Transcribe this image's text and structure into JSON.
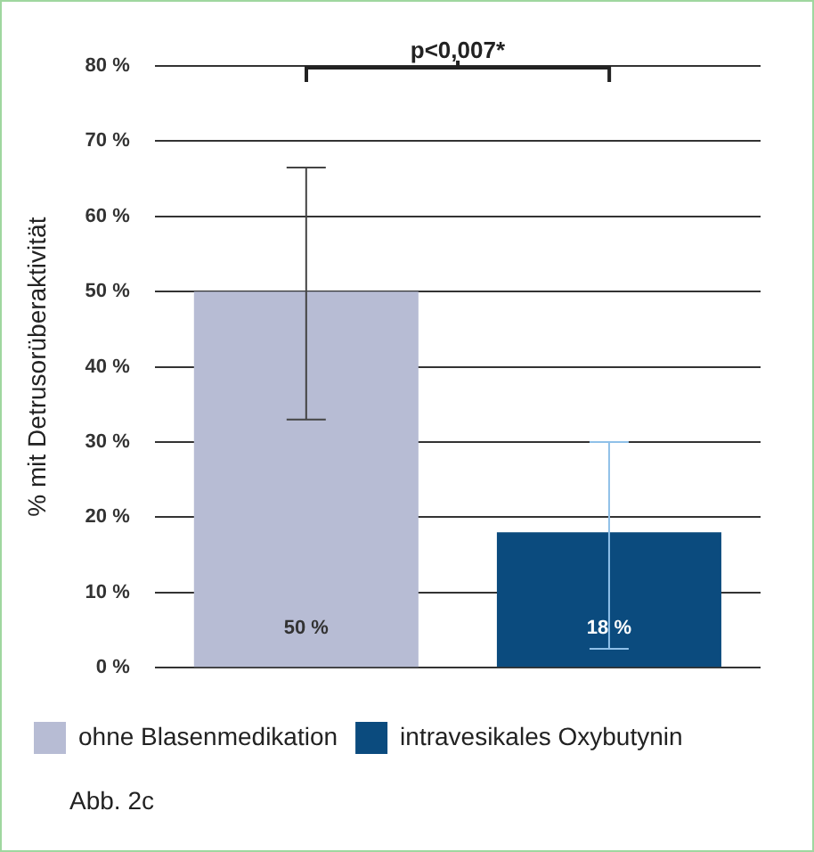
{
  "chart_data": {
    "type": "bar",
    "categories": [
      null,
      null
    ],
    "series": [
      {
        "name": "ohne Blasenmedikation",
        "color": "#b7bcd4",
        "values": [
          50,
          null
        ],
        "errors": [
          [
            33,
            66.5
          ],
          null
        ],
        "value_labels": [
          "50 %",
          null
        ]
      },
      {
        "name": "intravesikales Oxybutynin",
        "color": "#0b4b7e",
        "values": [
          null,
          18
        ],
        "errors": [
          null,
          [
            2.5,
            30
          ]
        ],
        "value_labels": [
          null,
          "18 %"
        ]
      }
    ],
    "ylabel": "% mit Detrusorüberaktivität",
    "ylim": [
      0,
      80
    ],
    "yticks": [
      {
        "value": 0,
        "label": "0 %"
      },
      {
        "value": 10,
        "label": "10 %"
      },
      {
        "value": 20,
        "label": "20 %"
      },
      {
        "value": 30,
        "label": "30 %"
      },
      {
        "value": 40,
        "label": "40 %"
      },
      {
        "value": 50,
        "label": "50 %"
      },
      {
        "value": 60,
        "label": "60 %"
      },
      {
        "value": 70,
        "label": "70 %"
      },
      {
        "value": 80,
        "label": "80 %"
      }
    ],
    "grid": "y",
    "legend": "bottom left",
    "annotations": [
      "p<0,007*",
      "Abb. 2c"
    ]
  }
}
